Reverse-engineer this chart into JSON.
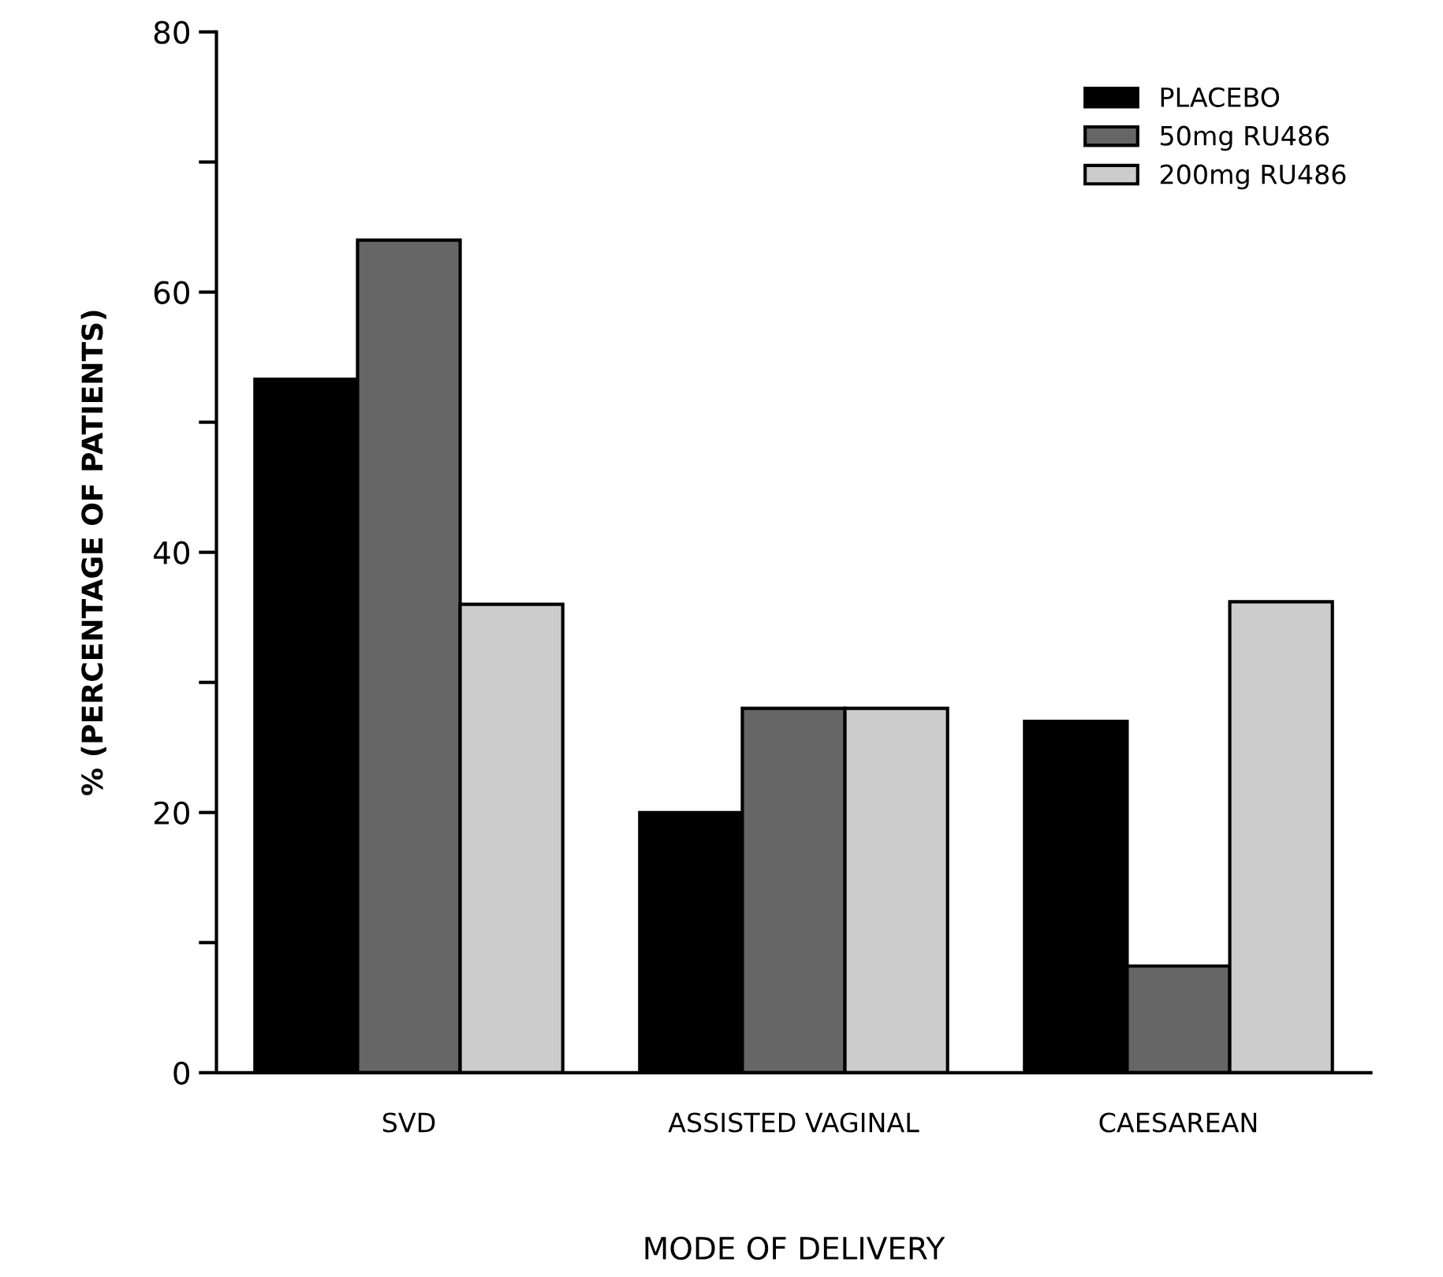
{
  "chart_data": {
    "type": "bar",
    "xlabel": "MODE OF DELIVERY",
    "ylabel": "% (PERCENTAGE OF PATIENTS)",
    "categories": [
      "SVD",
      "ASSISTED VAGINAL",
      "CAESAREAN"
    ],
    "series": [
      {
        "name": "PLACEBO",
        "color": "#000000",
        "values": [
          53.3,
          20,
          27
        ]
      },
      {
        "name": "50mg RU486",
        "color": "#666666",
        "values": [
          64,
          28,
          8.2
        ]
      },
      {
        "name": "200mg RU486",
        "color": "#cccccc",
        "values": [
          36,
          28,
          36.2
        ]
      }
    ],
    "ylim": [
      0,
      80
    ],
    "yticks": [
      0,
      {
        "value": 10,
        "label": null
      },
      20,
      {
        "value": 30,
        "label": null
      },
      40,
      {
        "value": 50,
        "label": null
      },
      60,
      {
        "value": 70,
        "label": null
      },
      80
    ],
    "grid": false,
    "legend": "top right"
  }
}
